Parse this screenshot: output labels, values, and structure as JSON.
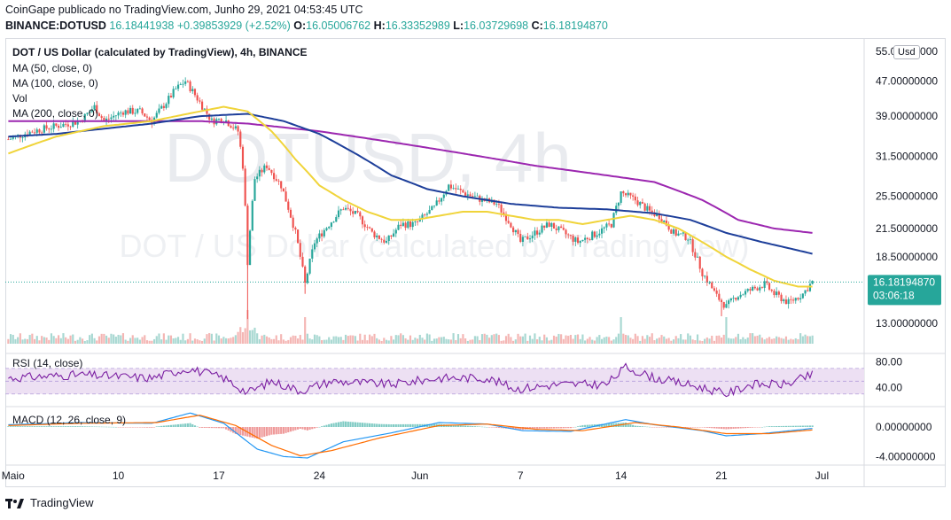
{
  "header": {
    "publisher_line": "CoinGape publicado no TradingView.com, Junho 29, 2021 04:53:45 UTC",
    "symbol": "BINANCE:DOTUSD",
    "last": "16.18441938",
    "change": "+0.39853929 (+2.52%)",
    "o_label": "O:",
    "o": "16.05006762",
    "h_label": "H:",
    "h": "16.33352989",
    "l_label": "L:",
    "l": "16.03729698",
    "c_label": "C:",
    "c": "16.18194870"
  },
  "legend": {
    "title": "DOT / US Dollar (calculated by TradingView), 4h, BINANCE",
    "ma50": "MA (50, close, 0)",
    "ma100": "MA (100, close, 0)",
    "vol": "Vol",
    "ma200": "MA (200, close, 0)",
    "rsi": "RSI (14, close)",
    "macd": "MACD (12, 26, close, 9)"
  },
  "watermark": {
    "big": "DOTUSD, 4h",
    "sub": "DOT / US Dollar (calculated by TradingView)"
  },
  "currency_button": "Usd",
  "price_badge": {
    "value": "16.18194870",
    "countdown": "03:06:18"
  },
  "footer": {
    "brand": "TradingView"
  },
  "colors": {
    "up": "#26a69a",
    "down": "#ef5350",
    "ma50": "#f0d43a",
    "ma100": "#1e3f9a",
    "ma200": "#9c27b0",
    "rsi": "#7b1fa2",
    "rsi_band": "#ede0f3",
    "macd": "#2196f3",
    "signal": "#ff6d00",
    "badge": "#26a69a"
  },
  "chart_data": [
    {
      "type": "candlestick",
      "pane": "price",
      "x_ticks": [
        "Maio",
        "10",
        "17",
        "24",
        "Jun",
        "7",
        "14",
        "21",
        "Jul"
      ],
      "x_tick_index": [
        2,
        46,
        88,
        130,
        172,
        214,
        256,
        298,
        340
      ],
      "y_ticks": [
        "55.00000000",
        "47.00000000",
        "39.00000000",
        "31.50000000",
        "25.50000000",
        "21.50000000",
        "18.50000000",
        "13.00000000"
      ],
      "y_tick_values": [
        55,
        47,
        39,
        31.5,
        25.5,
        21.5,
        18.5,
        13
      ],
      "y_scale": "log",
      "last_price": 16.1819487,
      "anchors_close": [
        [
          0,
          34.5
        ],
        [
          10,
          36
        ],
        [
          20,
          37
        ],
        [
          30,
          38
        ],
        [
          36,
          41
        ],
        [
          40,
          38
        ],
        [
          48,
          40
        ],
        [
          55,
          40
        ],
        [
          60,
          38
        ],
        [
          66,
          42
        ],
        [
          70,
          45
        ],
        [
          74,
          47
        ],
        [
          80,
          42
        ],
        [
          85,
          38
        ],
        [
          90,
          38.5
        ],
        [
          96,
          36
        ],
        [
          98,
          30
        ],
        [
          100,
          18
        ],
        [
          103,
          28
        ],
        [
          108,
          30
        ],
        [
          114,
          27
        ],
        [
          120,
          21
        ],
        [
          124,
          16
        ],
        [
          128,
          20
        ],
        [
          134,
          22
        ],
        [
          140,
          24
        ],
        [
          146,
          23
        ],
        [
          152,
          21
        ],
        [
          158,
          20
        ],
        [
          164,
          22
        ],
        [
          170,
          22
        ],
        [
          178,
          24
        ],
        [
          184,
          27
        ],
        [
          190,
          26
        ],
        [
          198,
          25
        ],
        [
          204,
          24.5
        ],
        [
          210,
          22
        ],
        [
          214,
          20
        ],
        [
          220,
          21
        ],
        [
          226,
          22
        ],
        [
          232,
          21
        ],
        [
          238,
          20
        ],
        [
          246,
          21
        ],
        [
          252,
          22
        ],
        [
          256,
          26
        ],
        [
          262,
          25
        ],
        [
          268,
          23.5
        ],
        [
          272,
          23
        ],
        [
          278,
          21
        ],
        [
          284,
          20.5
        ],
        [
          290,
          17
        ],
        [
          296,
          15
        ],
        [
          300,
          14.2
        ],
        [
          304,
          15
        ],
        [
          310,
          15.5
        ],
        [
          316,
          16
        ],
        [
          320,
          15.2
        ],
        [
          326,
          14.5
        ],
        [
          332,
          15.2
        ],
        [
          336,
          16.2
        ]
      ],
      "ma50_anchors": [
        [
          0,
          32
        ],
        [
          20,
          35
        ],
        [
          40,
          37
        ],
        [
          60,
          38
        ],
        [
          80,
          40
        ],
        [
          90,
          41
        ],
        [
          100,
          40
        ],
        [
          110,
          36
        ],
        [
          120,
          31
        ],
        [
          130,
          27
        ],
        [
          140,
          25
        ],
        [
          150,
          23.5
        ],
        [
          160,
          22.5
        ],
        [
          170,
          22.5
        ],
        [
          180,
          23
        ],
        [
          190,
          23.5
        ],
        [
          200,
          23.5
        ],
        [
          210,
          23
        ],
        [
          220,
          22.5
        ],
        [
          230,
          22.5
        ],
        [
          240,
          22
        ],
        [
          250,
          22.5
        ],
        [
          260,
          23
        ],
        [
          270,
          22.5
        ],
        [
          280,
          21.5
        ],
        [
          290,
          20
        ],
        [
          300,
          18.5
        ],
        [
          310,
          17.3
        ],
        [
          320,
          16.3
        ],
        [
          330,
          15.8
        ],
        [
          336,
          15.8
        ]
      ],
      "ma100_anchors": [
        [
          0,
          35
        ],
        [
          20,
          35.5
        ],
        [
          40,
          36.5
        ],
        [
          60,
          37.5
        ],
        [
          80,
          39
        ],
        [
          100,
          39.5
        ],
        [
          115,
          38
        ],
        [
          130,
          35.5
        ],
        [
          145,
          32
        ],
        [
          160,
          28.5
        ],
        [
          175,
          26.5
        ],
        [
          190,
          25.5
        ],
        [
          210,
          24.5
        ],
        [
          230,
          24
        ],
        [
          250,
          23.8
        ],
        [
          270,
          23.3
        ],
        [
          285,
          22.5
        ],
        [
          300,
          21
        ],
        [
          315,
          20
        ],
        [
          336,
          18.8
        ]
      ],
      "ma200_anchors": [
        [
          0,
          38
        ],
        [
          40,
          38
        ],
        [
          80,
          38
        ],
        [
          100,
          37.5
        ],
        [
          130,
          36
        ],
        [
          160,
          34
        ],
        [
          190,
          32
        ],
        [
          220,
          30
        ],
        [
          250,
          28.5
        ],
        [
          270,
          27.5
        ],
        [
          290,
          25
        ],
        [
          305,
          22.5
        ],
        [
          320,
          21.5
        ],
        [
          336,
          21
        ]
      ]
    },
    {
      "type": "line",
      "pane": "rsi",
      "y_ticks": [
        "80.00",
        "40.00"
      ],
      "y_tick_values": [
        80,
        40
      ],
      "band": [
        30,
        70
      ],
      "ylim": [
        20,
        85
      ],
      "anchors": [
        [
          0,
          55
        ],
        [
          30,
          60
        ],
        [
          60,
          55
        ],
        [
          75,
          70
        ],
        [
          90,
          55
        ],
        [
          100,
          32
        ],
        [
          110,
          50
        ],
        [
          122,
          35
        ],
        [
          135,
          50
        ],
        [
          160,
          45
        ],
        [
          180,
          55
        ],
        [
          200,
          55
        ],
        [
          212,
          38
        ],
        [
          230,
          45
        ],
        [
          250,
          45
        ],
        [
          258,
          72
        ],
        [
          270,
          55
        ],
        [
          290,
          40
        ],
        [
          300,
          30
        ],
        [
          310,
          45
        ],
        [
          325,
          45
        ],
        [
          336,
          60
        ]
      ]
    },
    {
      "type": "line",
      "pane": "macd",
      "series": [
        {
          "role": "macd"
        },
        {
          "role": "signal"
        },
        {
          "role": "histogram"
        }
      ],
      "y_ticks": [
        "0.00000000",
        "-4.00000000"
      ],
      "y_tick_values": [
        0,
        -4
      ],
      "ylim": [
        -4.8,
        2.4
      ],
      "anchors_macd": [
        [
          0,
          0.3
        ],
        [
          30,
          0.6
        ],
        [
          60,
          0.5
        ],
        [
          76,
          1.9
        ],
        [
          90,
          0.5
        ],
        [
          104,
          -3.0
        ],
        [
          115,
          -4.0
        ],
        [
          125,
          -4.2
        ],
        [
          140,
          -2
        ],
        [
          160,
          -0.8
        ],
        [
          180,
          0.6
        ],
        [
          200,
          0.4
        ],
        [
          215,
          -0.5
        ],
        [
          235,
          -0.6
        ],
        [
          258,
          1.0
        ],
        [
          270,
          0.3
        ],
        [
          290,
          -0.5
        ],
        [
          300,
          -1.2
        ],
        [
          315,
          -0.9
        ],
        [
          336,
          -0.2
        ]
      ],
      "anchors_signal": [
        [
          0,
          0.2
        ],
        [
          30,
          0.5
        ],
        [
          62,
          0.6
        ],
        [
          80,
          1.6
        ],
        [
          95,
          0.2
        ],
        [
          110,
          -2.5
        ],
        [
          122,
          -3.9
        ],
        [
          135,
          -3.2
        ],
        [
          155,
          -1.5
        ],
        [
          180,
          0.2
        ],
        [
          200,
          0.4
        ],
        [
          220,
          -0.3
        ],
        [
          240,
          -0.5
        ],
        [
          262,
          0.6
        ],
        [
          280,
          0
        ],
        [
          300,
          -0.9
        ],
        [
          318,
          -0.9
        ],
        [
          336,
          -0.4
        ]
      ]
    }
  ]
}
